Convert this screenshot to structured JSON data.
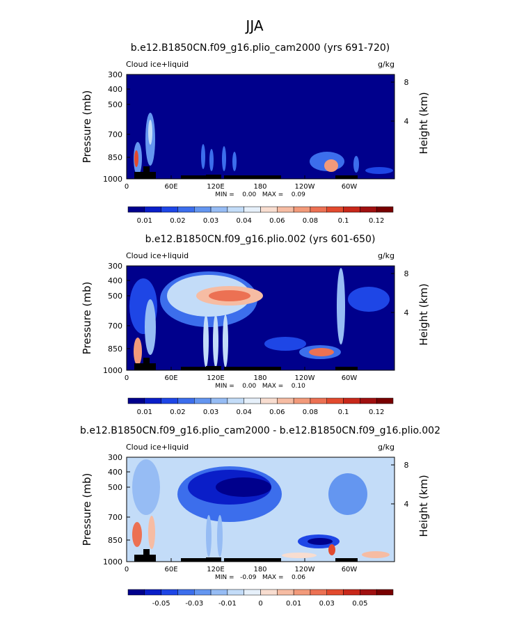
{
  "page_title": "JJA",
  "chart_data": [
    {
      "type": "heatmap",
      "title": "b.e12.B1850CN.f09_g16.plio_cam2000 (yrs 691-720)",
      "variable_label": "Cloud ice+liquid",
      "units": "g/kg",
      "ylabel": "Pressure (mb)",
      "ylabel_right": "Height (km)",
      "x_ticks": [
        "0",
        "60E",
        "120E",
        "180",
        "120W",
        "60W"
      ],
      "y_ticks": [
        "300",
        "400",
        "500",
        "700",
        "850",
        "1000"
      ],
      "height_ticks": [
        "8",
        "4"
      ],
      "min_max_text": "MIN =    0.00   MAX =    0.09",
      "colorbar_labels": [
        "0.01",
        "0.02",
        "0.03",
        "0.04",
        "0.06",
        "0.08",
        "0.1",
        "0.12"
      ],
      "colorbar_colors": [
        "#00008c",
        "#0a1ec8",
        "#1e46e6",
        "#3c6eec",
        "#6496f0",
        "#96bcf4",
        "#c3dcf8",
        "#e6f0fa",
        "#f8ddd0",
        "#f6bca3",
        "#f29a7a",
        "#ec7153",
        "#e24a2e",
        "#c8281a",
        "#a01010",
        "#780000"
      ]
    },
    {
      "type": "heatmap",
      "title": "b.e12.B1850CN.f09_g16.plio.002 (yrs 601-650)",
      "variable_label": "Cloud ice+liquid",
      "units": "g/kg",
      "ylabel": "Pressure (mb)",
      "ylabel_right": "Height (km)",
      "x_ticks": [
        "0",
        "60E",
        "120E",
        "180",
        "120W",
        "60W"
      ],
      "y_ticks": [
        "300",
        "400",
        "500",
        "700",
        "850",
        "1000"
      ],
      "height_ticks": [
        "8",
        "4"
      ],
      "min_max_text": "MIN =    0.00   MAX =    0.10",
      "colorbar_labels": [
        "0.01",
        "0.02",
        "0.03",
        "0.04",
        "0.06",
        "0.08",
        "0.1",
        "0.12"
      ],
      "colorbar_colors": [
        "#00008c",
        "#0a1ec8",
        "#1e46e6",
        "#3c6eec",
        "#6496f0",
        "#96bcf4",
        "#c3dcf8",
        "#e6f0fa",
        "#f8ddd0",
        "#f6bca3",
        "#f29a7a",
        "#ec7153",
        "#e24a2e",
        "#c8281a",
        "#a01010",
        "#780000"
      ]
    },
    {
      "type": "heatmap",
      "title": "b.e12.B1850CN.f09_g16.plio_cam2000 - b.e12.B1850CN.f09_g16.plio.002",
      "variable_label": "Cloud ice+liquid",
      "units": "g/kg",
      "ylabel": "Pressure (mb)",
      "ylabel_right": "Height (km)",
      "x_ticks": [
        "0",
        "60E",
        "120E",
        "180",
        "120W",
        "60W"
      ],
      "y_ticks": [
        "300",
        "400",
        "500",
        "700",
        "850",
        "1000"
      ],
      "height_ticks": [
        "8",
        "4"
      ],
      "min_max_text": "MIN =   -0.09   MAX =    0.06",
      "colorbar_labels": [
        "-0.05",
        "-0.03",
        "-0.01",
        "0",
        "0.01",
        "0.03",
        "0.05"
      ],
      "colorbar_colors": [
        "#00008c",
        "#0a1ec8",
        "#1e46e6",
        "#3c6eec",
        "#6496f0",
        "#96bcf4",
        "#c3dcf8",
        "#e6f0fa",
        "#f8ddd0",
        "#f6bca3",
        "#f29a7a",
        "#ec7153",
        "#e24a2e",
        "#c8281a",
        "#a01010",
        "#780000"
      ]
    }
  ]
}
